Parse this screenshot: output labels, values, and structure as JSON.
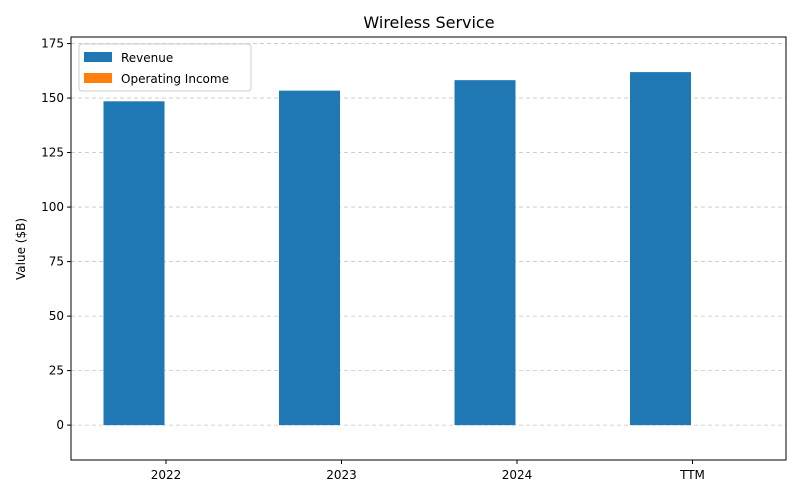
{
  "chart_data": {
    "type": "bar",
    "title": "Wireless Service",
    "xlabel": "",
    "ylabel": "Value ($B)",
    "categories": [
      "2022",
      "2023",
      "2024",
      "TTM"
    ],
    "series": [
      {
        "name": "Revenue",
        "color": "#1f77b4",
        "values": [
          148.5,
          153.4,
          158.2,
          161.9
        ]
      },
      {
        "name": "Operating Income",
        "color": "#ff7f0e",
        "values": [
          0,
          0,
          0,
          0
        ]
      }
    ],
    "ylim": [
      -16,
      178
    ],
    "yticks": [
      0,
      25,
      50,
      75,
      100,
      125,
      150,
      175
    ],
    "grid": true,
    "legend_position": "top-left"
  }
}
